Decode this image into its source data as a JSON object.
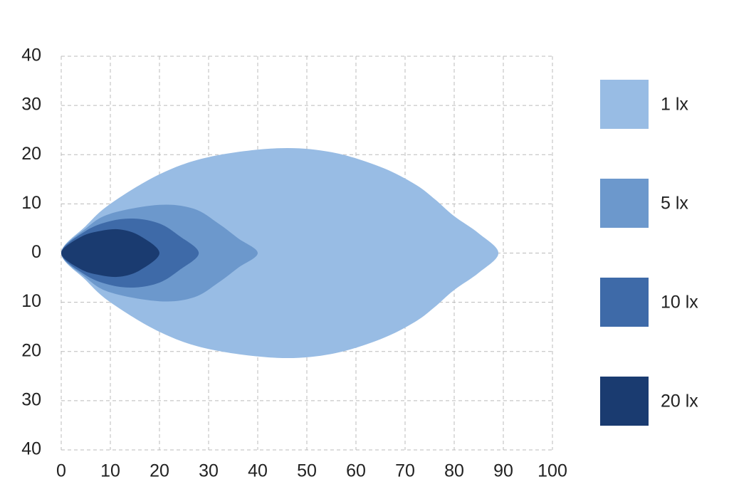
{
  "chart_data": {
    "type": "area",
    "xlim": [
      0,
      100
    ],
    "xticks": [
      0,
      10,
      20,
      30,
      40,
      50,
      60,
      70,
      80,
      90,
      100
    ],
    "ylim": [
      -40,
      40
    ],
    "yticks": [
      {
        "value": -40,
        "label": "40"
      },
      {
        "value": -30,
        "label": "30"
      },
      {
        "value": -20,
        "label": "20"
      },
      {
        "value": -10,
        "label": "10"
      },
      0,
      10,
      20,
      30,
      40
    ],
    "grid": true,
    "legend": "right",
    "series": [
      {
        "name": "1 lx",
        "color": "#98bce4",
        "x": [
          0,
          5,
          10,
          20,
          30,
          44,
          55,
          65,
          72,
          76,
          80,
          85,
          89,
          85,
          80,
          76,
          72,
          65,
          55,
          44,
          30,
          20,
          10,
          5
        ],
        "values": [
          0,
          5.5,
          10,
          16,
          19.5,
          21.3,
          20.5,
          17.5,
          14,
          11,
          7.5,
          4,
          0,
          -4,
          -7.5,
          -11,
          -14,
          -17.5,
          -20.5,
          -21.3,
          -19.5,
          -16,
          -10,
          -5.5
        ]
      },
      {
        "name": "5 lx",
        "color": "#6c98cc",
        "x": [
          0,
          5,
          10,
          20,
          27,
          32,
          36,
          40,
          36,
          32,
          27,
          20,
          10,
          5
        ],
        "values": [
          0,
          5,
          8,
          9.8,
          9,
          6,
          3,
          0,
          -3,
          -6,
          -9,
          -9.8,
          -8,
          -5
        ]
      },
      {
        "name": "10 lx",
        "color": "#3e6aa8",
        "x": [
          0,
          5,
          10,
          15,
          20,
          24,
          28,
          24,
          20,
          15,
          10,
          5
        ],
        "values": [
          0,
          4.5,
          6.5,
          7,
          6,
          3.5,
          0,
          -3.5,
          -6,
          -7,
          -6.5,
          -4.5
        ]
      },
      {
        "name": "20 lx",
        "color": "#1a3b70",
        "x": [
          0,
          4,
          8,
          12,
          16,
          20,
          16,
          12,
          8,
          4
        ],
        "values": [
          0,
          3.3,
          4.5,
          4.8,
          3.5,
          0,
          -3.5,
          -4.8,
          -4.5,
          -3.3
        ]
      }
    ]
  }
}
